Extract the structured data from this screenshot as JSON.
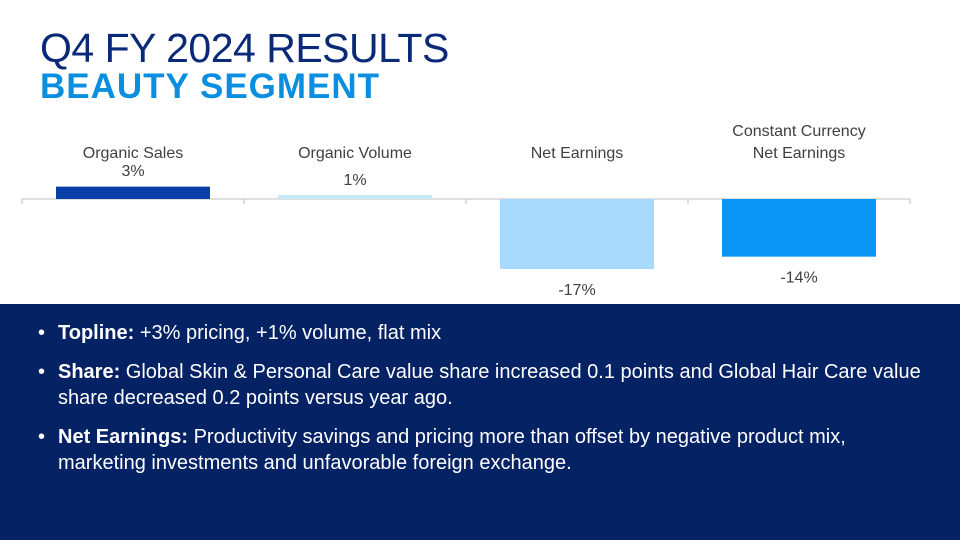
{
  "header": {
    "title": "Q4 FY 2024 RESULTS",
    "subtitle": "BEAUTY SEGMENT"
  },
  "chart_data": {
    "type": "bar",
    "categories": [
      "Organic Sales",
      "Organic Volume",
      "Net Earnings",
      "Constant Currency\nNet Earnings"
    ],
    "values": [
      3,
      1,
      -17,
      -14
    ],
    "value_labels": [
      "3%",
      "1%",
      "-17%",
      "-14%"
    ],
    "colors": [
      "#0a3fa8",
      "#c7e8f7",
      "#a9d9fb",
      "#0a96f5"
    ],
    "title": "",
    "xlabel": "",
    "ylabel": "",
    "ylim": [
      -22,
      3
    ],
    "grid": false,
    "legend": "none"
  },
  "bullets": [
    {
      "label": "Topline:",
      "text": " +3% pricing, +1% volume, flat mix"
    },
    {
      "label": "Share:",
      "text": " Global Skin & Personal Care value share increased 0.1 points and Global Hair Care value share decreased 0.2 points versus year ago."
    },
    {
      "label": "Net Earnings:",
      "text": " Productivity savings and pricing more than offset by negative product mix, marketing investments and unfavorable foreign exchange."
    }
  ],
  "colors": {
    "title": "#0a2a78",
    "subtitle": "#0a8fe0",
    "panel_background": "#052265",
    "panel_text": "#ffffff"
  }
}
